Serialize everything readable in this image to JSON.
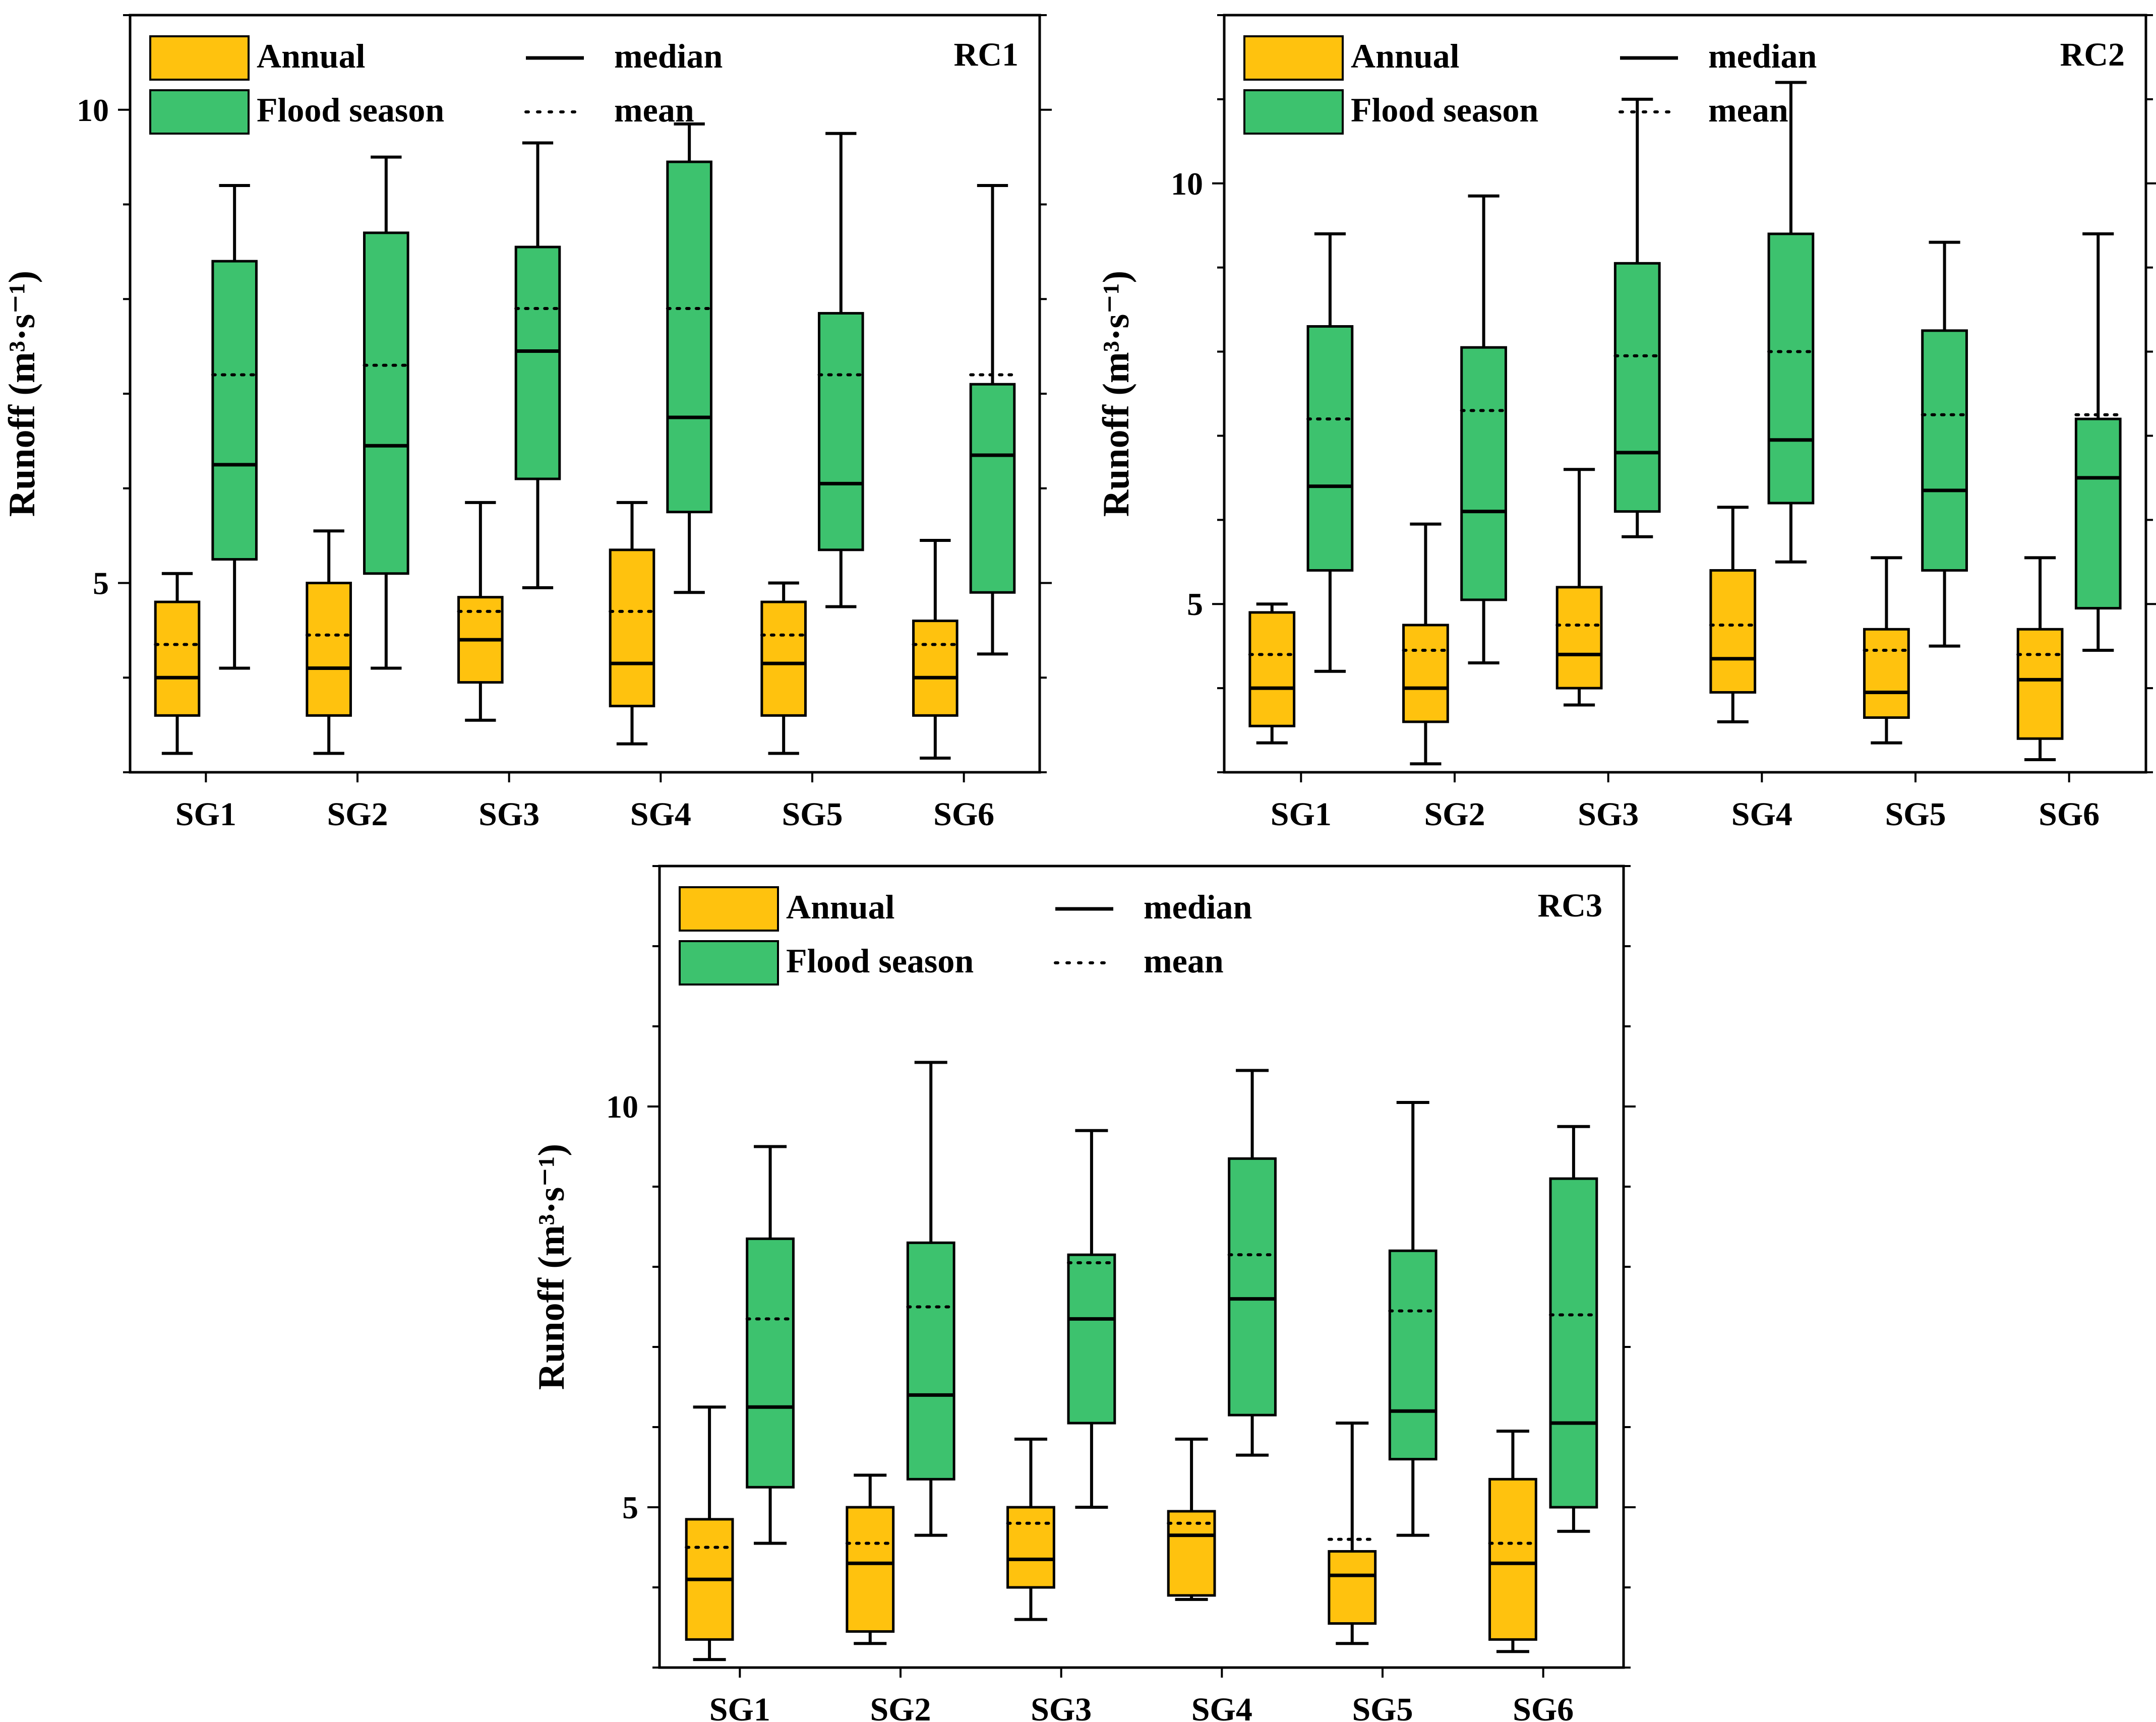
{
  "figure": {
    "box_labels": [
      "Annual",
      "Flood season"
    ],
    "colors": {
      "annual": "#FFC20E",
      "flood": "#3DC26E",
      "stroke": "#000000"
    },
    "legend_labels": {
      "annual": "Annual",
      "flood": "Flood season",
      "median": "median",
      "mean": "mean"
    }
  },
  "chart_data": [
    {
      "type": "box",
      "title": "RC1",
      "ylabel": "Runoff (m³·s⁻¹)",
      "ylim": [
        3.0,
        11.0
      ],
      "yticks": [
        5,
        10
      ],
      "categories": [
        "SG1",
        "SG2",
        "SG3",
        "SG4",
        "SG5",
        "SG6"
      ],
      "series": [
        {
          "name": "Annual",
          "boxes": [
            {
              "min": 3.2,
              "q1": 3.6,
              "median": 4.0,
              "q3": 4.8,
              "max": 5.1,
              "mean": 4.35
            },
            {
              "min": 3.2,
              "q1": 3.6,
              "median": 4.1,
              "q3": 5.0,
              "max": 5.55,
              "mean": 4.45
            },
            {
              "min": 3.55,
              "q1": 3.95,
              "median": 4.4,
              "q3": 4.85,
              "max": 5.85,
              "mean": 4.7
            },
            {
              "min": 3.3,
              "q1": 3.7,
              "median": 4.15,
              "q3": 5.35,
              "max": 5.85,
              "mean": 4.7
            },
            {
              "min": 3.2,
              "q1": 3.6,
              "median": 4.15,
              "q3": 4.8,
              "max": 5.0,
              "mean": 4.45
            },
            {
              "min": 3.15,
              "q1": 3.6,
              "median": 4.0,
              "q3": 4.6,
              "max": 5.45,
              "mean": 4.35
            }
          ]
        },
        {
          "name": "Flood season",
          "boxes": [
            {
              "min": 4.1,
              "q1": 5.25,
              "median": 6.25,
              "q3": 8.4,
              "max": 9.2,
              "mean": 7.2
            },
            {
              "min": 4.1,
              "q1": 5.1,
              "median": 6.45,
              "q3": 8.7,
              "max": 9.5,
              "mean": 7.3
            },
            {
              "min": 4.95,
              "q1": 6.1,
              "median": 7.45,
              "q3": 8.55,
              "max": 9.65,
              "mean": 7.9
            },
            {
              "min": 4.9,
              "q1": 5.75,
              "median": 6.75,
              "q3": 9.45,
              "max": 9.85,
              "mean": 7.9
            },
            {
              "min": 4.75,
              "q1": 5.35,
              "median": 6.05,
              "q3": 7.85,
              "max": 9.75,
              "mean": 7.2
            },
            {
              "min": 4.25,
              "q1": 4.9,
              "median": 6.35,
              "q3": 7.1,
              "max": 9.2,
              "mean": 7.2
            }
          ]
        }
      ]
    },
    {
      "type": "box",
      "title": "RC2",
      "ylabel": "Runoff (m³·s⁻¹)",
      "ylim": [
        3.0,
        12.0
      ],
      "yticks": [
        5,
        10
      ],
      "categories": [
        "SG1",
        "SG2",
        "SG3",
        "SG4",
        "SG5",
        "SG6"
      ],
      "series": [
        {
          "name": "Annual",
          "boxes": [
            {
              "min": 3.35,
              "q1": 3.55,
              "median": 4.0,
              "q3": 4.9,
              "max": 5.0,
              "mean": 4.4
            },
            {
              "min": 3.1,
              "q1": 3.6,
              "median": 4.0,
              "q3": 4.75,
              "max": 5.95,
              "mean": 4.45
            },
            {
              "min": 3.8,
              "q1": 4.0,
              "median": 4.4,
              "q3": 5.2,
              "max": 6.6,
              "mean": 4.75
            },
            {
              "min": 3.6,
              "q1": 3.95,
              "median": 4.35,
              "q3": 5.4,
              "max": 6.15,
              "mean": 4.75
            },
            {
              "min": 3.35,
              "q1": 3.65,
              "median": 3.95,
              "q3": 4.7,
              "max": 5.55,
              "mean": 4.45
            },
            {
              "min": 3.15,
              "q1": 3.4,
              "median": 4.1,
              "q3": 4.7,
              "max": 5.55,
              "mean": 4.4
            }
          ]
        },
        {
          "name": "Flood season",
          "boxes": [
            {
              "min": 4.2,
              "q1": 5.4,
              "median": 6.4,
              "q3": 8.3,
              "max": 9.4,
              "mean": 7.2
            },
            {
              "min": 4.3,
              "q1": 5.05,
              "median": 6.1,
              "q3": 8.05,
              "max": 9.85,
              "mean": 7.3
            },
            {
              "min": 5.8,
              "q1": 6.1,
              "median": 6.8,
              "q3": 9.05,
              "max": 11.0,
              "mean": 7.95
            },
            {
              "min": 5.5,
              "q1": 6.2,
              "median": 6.95,
              "q3": 9.4,
              "max": 11.2,
              "mean": 8.0
            },
            {
              "min": 4.5,
              "q1": 5.4,
              "median": 6.35,
              "q3": 8.25,
              "max": 9.3,
              "mean": 7.25
            },
            {
              "min": 4.45,
              "q1": 4.95,
              "median": 6.5,
              "q3": 7.2,
              "max": 9.4,
              "mean": 7.25
            }
          ]
        }
      ]
    },
    {
      "type": "box",
      "title": "RC3",
      "ylabel": "Runoff (m³·s⁻¹)",
      "ylim": [
        3.0,
        13.0
      ],
      "yticks": [
        5,
        10
      ],
      "categories": [
        "SG1",
        "SG2",
        "SG3",
        "SG4",
        "SG5",
        "SG6"
      ],
      "series": [
        {
          "name": "Annual",
          "boxes": [
            {
              "min": 3.1,
              "q1": 3.35,
              "median": 4.1,
              "q3": 4.85,
              "max": 6.25,
              "mean": 4.5
            },
            {
              "min": 3.3,
              "q1": 3.45,
              "median": 4.3,
              "q3": 5.0,
              "max": 5.4,
              "mean": 4.55
            },
            {
              "min": 3.6,
              "q1": 4.0,
              "median": 4.35,
              "q3": 5.0,
              "max": 5.85,
              "mean": 4.8
            },
            {
              "min": 3.85,
              "q1": 3.9,
              "median": 4.65,
              "q3": 4.95,
              "max": 5.85,
              "mean": 4.8
            },
            {
              "min": 3.3,
              "q1": 3.55,
              "median": 4.15,
              "q3": 4.45,
              "max": 6.05,
              "mean": 4.6
            },
            {
              "min": 3.2,
              "q1": 3.35,
              "median": 4.3,
              "q3": 5.35,
              "max": 5.95,
              "mean": 4.55
            }
          ]
        },
        {
          "name": "Flood season",
          "boxes": [
            {
              "min": 4.55,
              "q1": 5.25,
              "median": 6.25,
              "q3": 8.35,
              "max": 9.5,
              "mean": 7.35
            },
            {
              "min": 4.65,
              "q1": 5.35,
              "median": 6.4,
              "q3": 8.3,
              "max": 10.55,
              "mean": 7.5
            },
            {
              "min": 5.0,
              "q1": 6.05,
              "median": 7.35,
              "q3": 8.15,
              "max": 9.7,
              "mean": 8.05
            },
            {
              "min": 5.65,
              "q1": 6.15,
              "median": 7.6,
              "q3": 9.35,
              "max": 10.45,
              "mean": 8.15
            },
            {
              "min": 4.65,
              "q1": 5.6,
              "median": 6.2,
              "q3": 8.2,
              "max": 10.05,
              "mean": 7.45
            },
            {
              "min": 4.7,
              "q1": 5.0,
              "median": 6.05,
              "q3": 9.1,
              "max": 9.75,
              "mean": 7.4
            }
          ]
        }
      ]
    }
  ]
}
